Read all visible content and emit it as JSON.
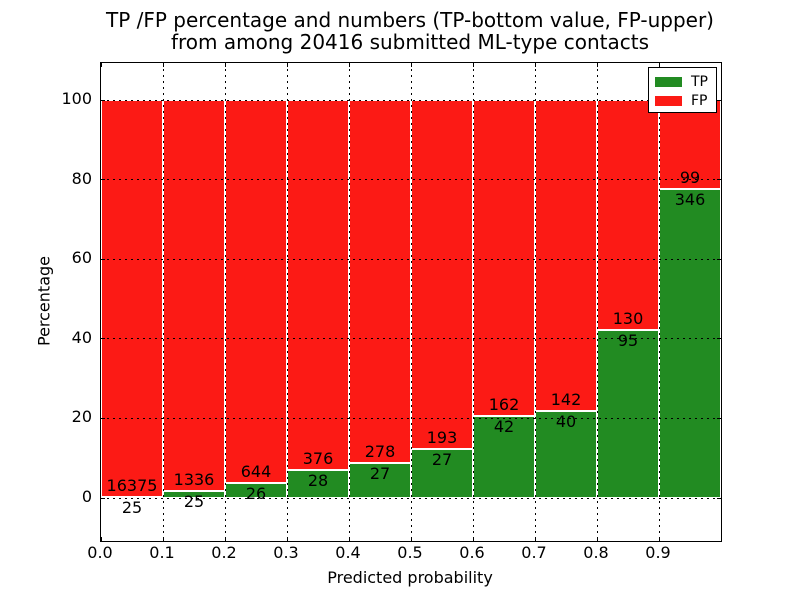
{
  "title": {
    "line1": "TP /FP percentage and numbers (TP-bottom value, FP-upper)",
    "line2": "from among 20416 submitted ML-type contacts"
  },
  "chart_data": {
    "type": "bar",
    "stacked": true,
    "title": "TP /FP percentage and numbers (TP-bottom value, FP-upper) from among 20416 submitted ML-type contacts",
    "total_submitted_contacts": 20416,
    "xlabel": "Predicted probability",
    "ylabel": "Percentage",
    "x_bins": [
      [
        0.0,
        0.1
      ],
      [
        0.1,
        0.2
      ],
      [
        0.2,
        0.3
      ],
      [
        0.3,
        0.4
      ],
      [
        0.4,
        0.5
      ],
      [
        0.5,
        0.6
      ],
      [
        0.6,
        0.7
      ],
      [
        0.7,
        0.8
      ],
      [
        0.8,
        0.9
      ],
      [
        0.9,
        1.0
      ]
    ],
    "x_tick_labels": [
      "0.0",
      "0.1",
      "0.2",
      "0.3",
      "0.4",
      "0.5",
      "0.6",
      "0.7",
      "0.8",
      "0.9"
    ],
    "y_ticks": [
      0,
      20,
      40,
      60,
      80,
      100
    ],
    "y_tick_labels": [
      "0",
      "20",
      "40",
      "60",
      "80",
      "100"
    ],
    "xlim": [
      0.0,
      1.0
    ],
    "ylim": [
      -10.8,
      109.3
    ],
    "grid": true,
    "grid_style": "dotted",
    "bar_edge_color": "#ffffff",
    "series": [
      {
        "name": "TP",
        "color": "#228b22",
        "counts": [
          25,
          25,
          26,
          28,
          27,
          27,
          42,
          40,
          95,
          346
        ]
      },
      {
        "name": "FP",
        "color": "#fc1a15",
        "counts": [
          16375,
          1336,
          644,
          376,
          278,
          193,
          162,
          142,
          130,
          99
        ]
      }
    ],
    "tp_percent": [
      0.15,
      1.84,
      3.88,
      6.93,
      8.85,
      12.27,
      20.59,
      21.98,
      42.22,
      77.75
    ],
    "legend": {
      "position": "upper right",
      "entries": [
        {
          "label": "TP",
          "color": "#228b22"
        },
        {
          "label": "FP",
          "color": "#fc1a15"
        }
      ]
    }
  }
}
